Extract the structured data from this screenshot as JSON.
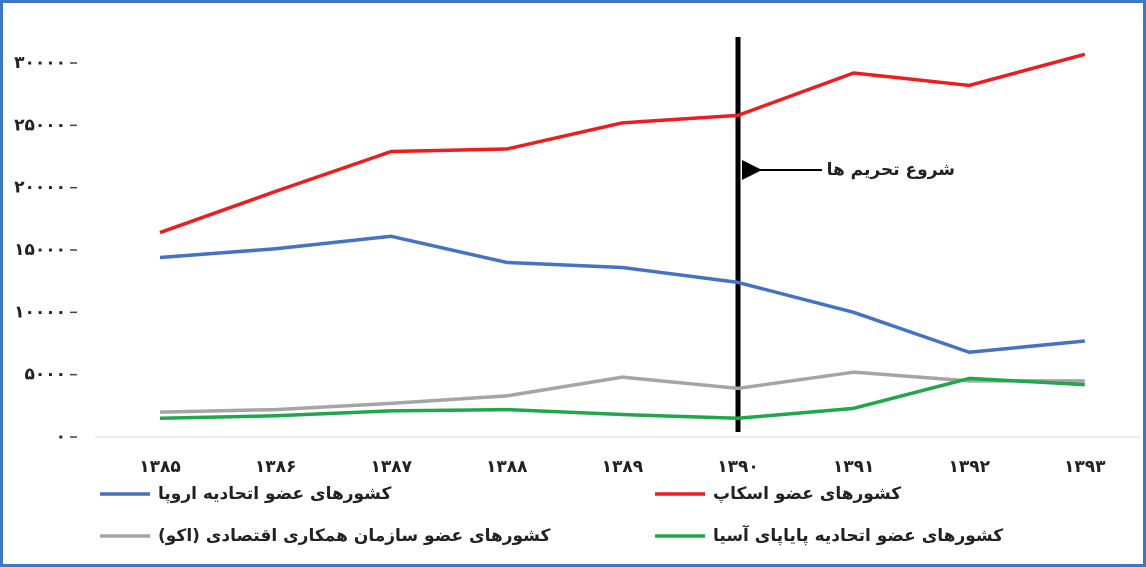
{
  "chart_data": {
    "type": "line",
    "annotation": "شروع تحریم ها",
    "categories": [
      "۱۳۸۵",
      "۱۳۸۶",
      "۱۳۸۷",
      "۱۳۸۸",
      "۱۳۸۹",
      "۱۳۹۰",
      "۱۳۹۱",
      "۱۳۹۲",
      "۱۳۹۳"
    ],
    "series": [
      {
        "name": "کشورهای عضو اتحادیه اروپا",
        "color": "#4472c4",
        "values": [
          14400,
          15100,
          16100,
          14000,
          13600,
          12400,
          10000,
          6800,
          7700
        ]
      },
      {
        "name": "کشورهای عضو اسکاپ",
        "color": "#ee1c1c",
        "values": [
          16400,
          19700,
          22900,
          23100,
          25200,
          25800,
          29200,
          28200,
          30700
        ]
      },
      {
        "name": "کشورهای عضو سازمان همکاری اقتصادی (اکو)",
        "color": "#a5a5a5",
        "values": [
          2000,
          2200,
          2700,
          3300,
          4800,
          3900,
          5200,
          4500,
          4500
        ]
      },
      {
        "name": "کشورهای عضو اتحادیه پایاپای آسیا",
        "color": "#1ea84a",
        "values": [
          1500,
          1700,
          2100,
          2200,
          1800,
          1500,
          2300,
          4700,
          4200
        ]
      }
    ],
    "ylim": [
      0,
      30000
    ],
    "yticks": [
      {
        "value": 0,
        "label": "۰"
      },
      {
        "value": 5000,
        "label": "۵۰۰۰"
      },
      {
        "value": 10000,
        "label": "۱۰۰۰۰"
      },
      {
        "value": 15000,
        "label": "۱۵۰۰۰"
      },
      {
        "value": 20000,
        "label": "۲۰۰۰۰"
      },
      {
        "value": 25000,
        "label": "۲۵۰۰۰"
      },
      {
        "value": 30000,
        "label": "۳۰۰۰۰"
      }
    ],
    "grid": false
  }
}
